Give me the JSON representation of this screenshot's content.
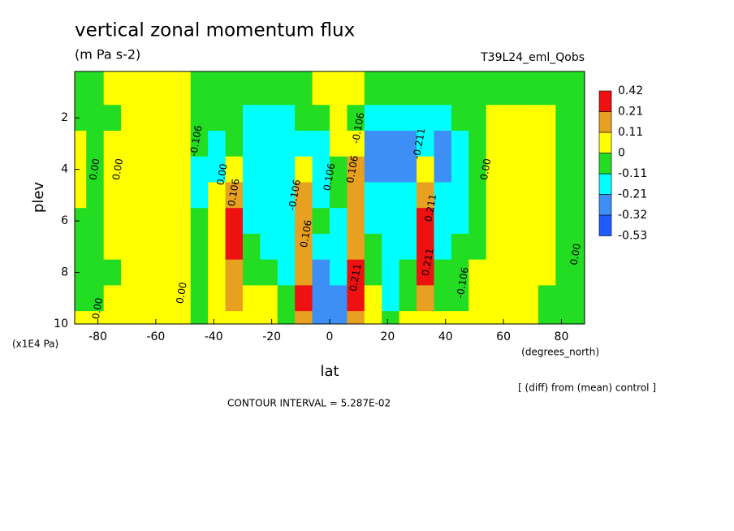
{
  "chart_data": {
    "type": "contour",
    "title": "vertical zonal momentum flux",
    "subtitle": "(m Pa s-2)",
    "dataset_label": "T39L24_eml_Qobs",
    "xlabel": "lat",
    "xunits": "(degrees_north)",
    "ylabel": "plev",
    "yunits": "(x1E4 Pa)",
    "note": "[ (diff) from (mean) control ]",
    "contour_interval": "CONTOUR INTERVAL = 5.287E-02",
    "xlim": [
      -88,
      88
    ],
    "ylim": [
      10,
      0.2
    ],
    "xticks": [
      -80,
      -60,
      -40,
      -20,
      0,
      20,
      40,
      60,
      80
    ],
    "yticks": [
      2,
      4,
      6,
      8,
      10
    ],
    "levels": [
      -0.53,
      -0.32,
      -0.21,
      -0.11,
      0,
      0.11,
      0.21,
      0.42
    ],
    "colors": [
      "#1f5cff",
      "#3d8ff5",
      "#00ffff",
      "#22dd22",
      "#ffff00",
      "#e8a020",
      "#ee1111"
    ],
    "x": [
      -87,
      -81,
      -75,
      -69,
      -63,
      -57,
      -51,
      -45,
      -39,
      -33,
      -27,
      -21,
      -15,
      -9,
      -3,
      3,
      9,
      15,
      21,
      27,
      33,
      39,
      45,
      51,
      57,
      63,
      69,
      75,
      81,
      87
    ],
    "y": [
      1,
      2,
      3,
      4,
      5,
      6,
      7,
      8,
      9,
      10
    ],
    "z": [
      [
        -0.05,
        -0.05,
        0.05,
        0.05,
        0.05,
        0.05,
        0.05,
        -0.05,
        -0.05,
        -0.05,
        -0.05,
        -0.05,
        -0.05,
        -0.05,
        0.05,
        0.05,
        0.05,
        -0.05,
        -0.05,
        -0.05,
        -0.05,
        -0.05,
        -0.05,
        -0.05,
        -0.05,
        -0.05,
        -0.05,
        -0.05,
        -0.05,
        -0.05
      ],
      [
        -0.05,
        -0.05,
        -0.05,
        0.05,
        0.05,
        0.05,
        0.05,
        -0.05,
        -0.05,
        -0.05,
        -0.15,
        -0.15,
        -0.15,
        -0.05,
        -0.05,
        0.05,
        -0.05,
        -0.15,
        -0.15,
        -0.15,
        -0.15,
        -0.15,
        -0.05,
        -0.05,
        0.05,
        0.05,
        0.05,
        0.05,
        -0.05,
        -0.05
      ],
      [
        0.05,
        -0.05,
        0.05,
        0.05,
        0.05,
        0.05,
        0.05,
        -0.05,
        -0.15,
        -0.05,
        -0.15,
        -0.15,
        -0.15,
        -0.15,
        -0.15,
        0.05,
        0.05,
        -0.25,
        -0.25,
        -0.25,
        -0.15,
        -0.25,
        -0.15,
        -0.05,
        0.05,
        0.05,
        0.05,
        0.05,
        -0.05,
        -0.05
      ],
      [
        0.05,
        -0.05,
        0.05,
        0.05,
        0.05,
        0.05,
        0.05,
        -0.15,
        -0.15,
        0.05,
        -0.15,
        -0.15,
        -0.15,
        0.05,
        -0.15,
        -0.05,
        0.15,
        -0.25,
        -0.25,
        -0.25,
        0.05,
        -0.25,
        -0.15,
        -0.05,
        0.05,
        0.05,
        0.05,
        0.05,
        -0.05,
        -0.05
      ],
      [
        0.05,
        -0.05,
        0.05,
        0.05,
        0.05,
        0.05,
        0.05,
        -0.15,
        0.05,
        0.15,
        -0.15,
        -0.15,
        -0.15,
        0.15,
        -0.15,
        -0.05,
        0.15,
        -0.15,
        -0.15,
        -0.15,
        0.15,
        -0.15,
        -0.15,
        -0.05,
        0.05,
        0.05,
        0.05,
        0.05,
        -0.05,
        -0.05
      ],
      [
        -0.05,
        -0.05,
        0.05,
        0.05,
        0.05,
        0.05,
        0.05,
        -0.05,
        0.05,
        0.3,
        -0.15,
        -0.15,
        -0.15,
        0.15,
        -0.05,
        -0.15,
        0.15,
        -0.15,
        -0.15,
        -0.15,
        0.3,
        -0.15,
        -0.15,
        -0.05,
        0.05,
        0.05,
        0.05,
        0.05,
        -0.05,
        -0.05
      ],
      [
        -0.05,
        -0.05,
        0.05,
        0.05,
        0.05,
        0.05,
        0.05,
        -0.05,
        0.05,
        0.3,
        -0.05,
        -0.15,
        -0.15,
        0.15,
        -0.15,
        -0.15,
        0.15,
        -0.05,
        -0.15,
        -0.15,
        0.3,
        -0.15,
        -0.05,
        -0.05,
        0.05,
        0.05,
        0.05,
        0.05,
        -0.05,
        -0.05
      ],
      [
        -0.05,
        -0.05,
        -0.05,
        0.05,
        0.05,
        0.05,
        0.05,
        -0.05,
        0.05,
        0.15,
        -0.05,
        -0.05,
        -0.15,
        0.15,
        -0.25,
        -0.15,
        0.3,
        -0.05,
        -0.15,
        -0.05,
        0.3,
        -0.05,
        -0.05,
        0.05,
        0.05,
        0.05,
        0.05,
        0.05,
        -0.05,
        -0.05
      ],
      [
        -0.05,
        -0.05,
        0.05,
        0.05,
        0.05,
        0.05,
        0.05,
        -0.05,
        0.05,
        0.15,
        0.05,
        0.05,
        -0.05,
        0.3,
        -0.25,
        -0.25,
        0.3,
        0.05,
        -0.15,
        -0.05,
        0.15,
        -0.05,
        -0.05,
        0.05,
        0.05,
        0.05,
        0.05,
        -0.05,
        -0.05,
        -0.05
      ],
      [
        0.05,
        0.05,
        0.05,
        0.05,
        0.05,
        0.05,
        0.05,
        -0.05,
        0.05,
        0.05,
        0.05,
        0.05,
        -0.05,
        0.15,
        -0.25,
        -0.25,
        0.15,
        0.05,
        -0.05,
        0.05,
        0.05,
        0.05,
        0.05,
        0.05,
        0.05,
        0.05,
        0.05,
        -0.05,
        -0.05,
        -0.05
      ]
    ],
    "contour_labels": [
      {
        "text": "0.00",
        "x": -81,
        "y": 4
      },
      {
        "text": "0.00",
        "x": -73,
        "y": 4
      },
      {
        "text": "-0.106",
        "x": -46,
        "y": 2.9
      },
      {
        "text": "0.00",
        "x": -37,
        "y": 4.2
      },
      {
        "text": "0.106",
        "x": -33,
        "y": 4.9
      },
      {
        "text": "0.00",
        "x": -51,
        "y": 8.8
      },
      {
        "text": "0.00",
        "x": -80,
        "y": 9.4
      },
      {
        "text": "-0.106",
        "x": -12,
        "y": 5
      },
      {
        "text": "0.106",
        "x": -8,
        "y": 6.5
      },
      {
        "text": "0.106",
        "x": 0,
        "y": 4.3
      },
      {
        "text": "0.106",
        "x": 8,
        "y": 4
      },
      {
        "text": "0.211",
        "x": 9,
        "y": 8.2
      },
      {
        "text": "-0.106",
        "x": 10,
        "y": 2.4
      },
      {
        "text": "-0.211",
        "x": 31,
        "y": 3
      },
      {
        "text": "0.211",
        "x": 35,
        "y": 5.5
      },
      {
        "text": "0.211",
        "x": 34,
        "y": 7.6
      },
      {
        "text": "-0.106",
        "x": 46,
        "y": 8.4
      },
      {
        "text": "0.00",
        "x": 54,
        "y": 4
      },
      {
        "text": "0.00",
        "x": 85,
        "y": 7.3
      }
    ]
  }
}
